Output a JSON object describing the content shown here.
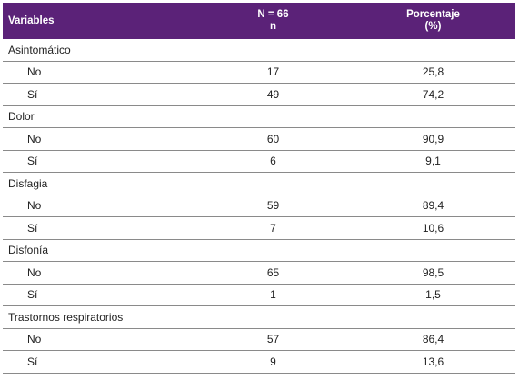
{
  "table": {
    "headers": {
      "variables": "Variables",
      "n_line1": "N = 66",
      "n_line2": "n",
      "pct_line1": "Porcentaje",
      "pct_line2": "(%)"
    },
    "groups": [
      {
        "name": "Asintomático",
        "rows": [
          {
            "label": "No",
            "n": "17",
            "pct": "25,8"
          },
          {
            "label": "Sí",
            "n": "49",
            "pct": "74,2"
          }
        ]
      },
      {
        "name": "Dolor",
        "rows": [
          {
            "label": "No",
            "n": "60",
            "pct": "90,9"
          },
          {
            "label": "Sí",
            "n": "6",
            "pct": "9,1"
          }
        ]
      },
      {
        "name": "Disfagia",
        "rows": [
          {
            "label": "No",
            "n": "59",
            "pct": "89,4"
          },
          {
            "label": "Sí",
            "n": "7",
            "pct": "10,6"
          }
        ]
      },
      {
        "name": "Disfonía",
        "rows": [
          {
            "label": "No",
            "n": "65",
            "pct": "98,5"
          },
          {
            "label": "Sí",
            "n": "1",
            "pct": "1,5"
          }
        ]
      },
      {
        "name": "Trastornos respiratorios",
        "rows": [
          {
            "label": "No",
            "n": "57",
            "pct": "86,4"
          },
          {
            "label": "Sí",
            "n": "9",
            "pct": "13,6"
          }
        ]
      }
    ]
  },
  "colors": {
    "header_bg": "#5b2278",
    "header_text": "#ffffff",
    "rule": "#8a8a8a"
  }
}
